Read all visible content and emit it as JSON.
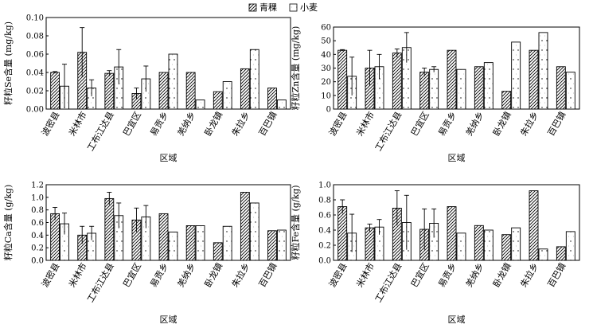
{
  "legend": {
    "items": [
      {
        "label": "青稞",
        "pattern": "hatch"
      },
      {
        "label": "小麦",
        "pattern": "dots"
      }
    ]
  },
  "chart_data": [
    {
      "type": "bar",
      "xlabel": "区域",
      "ylabel": "籽粒Se含量 (mg/kg)",
      "ylim": [
        0,
        0.1
      ],
      "yticks": [
        "0.00",
        "0.02",
        "0.04",
        "0.06",
        "0.08",
        "0.10"
      ],
      "categories": [
        "波密县",
        "米林市",
        "工布江达县",
        "巴宜区",
        "易贡乡",
        "羌纳乡",
        "卧龙镇",
        "朱拉乡",
        "百巴镇"
      ],
      "series": [
        {
          "name": "青稞",
          "values": [
            0.04,
            0.062,
            0.039,
            0.017,
            0.04,
            0.04,
            0.019,
            0.044,
            0.023
          ],
          "errors": [
            0.001,
            0.027,
            0.003,
            0.006,
            null,
            null,
            null,
            null,
            null
          ]
        },
        {
          "name": "小麦",
          "values": [
            0.025,
            0.023,
            0.046,
            0.033,
            0.06,
            0.01,
            0.03,
            0.065,
            0.01
          ],
          "errors": [
            0.024,
            0.009,
            0.019,
            0.014,
            null,
            null,
            null,
            null,
            null
          ]
        }
      ]
    },
    {
      "type": "bar",
      "xlabel": "区域",
      "ylabel": "籽粒Zn含量 (mg/kg)",
      "ylim": [
        0,
        60
      ],
      "yticks": [
        "0",
        "10",
        "20",
        "30",
        "40",
        "50",
        "60"
      ],
      "categories": [
        "波密县",
        "米林市",
        "工布江达县",
        "巴宜区",
        "易贡乡",
        "羌纳乡",
        "卧龙镇",
        "朱拉乡",
        "百巴镇"
      ],
      "series": [
        {
          "name": "青稞",
          "values": [
            43,
            30,
            41,
            27,
            43,
            31,
            13,
            43,
            31
          ],
          "errors": [
            0.5,
            13,
            3,
            3,
            null,
            null,
            null,
            null,
            null
          ]
        },
        {
          "name": "小麦",
          "values": [
            24,
            31,
            45,
            29,
            29,
            34,
            49,
            56,
            27
          ],
          "errors": [
            14,
            9,
            11,
            2,
            null,
            null,
            null,
            null,
            null
          ]
        }
      ]
    },
    {
      "type": "bar",
      "xlabel": "区域",
      "ylabel": "籽粒Ca含量 (g/kg)",
      "ylim": [
        0,
        1.2
      ],
      "yticks": [
        "0.0",
        "0.2",
        "0.4",
        "0.6",
        "0.8",
        "1.0",
        "1.2"
      ],
      "categories": [
        "波密县",
        "米林市",
        "工布江达县",
        "巴宜区",
        "易贡乡",
        "羌纳乡",
        "卧龙镇",
        "朱拉乡",
        "百巴镇"
      ],
      "series": [
        {
          "name": "青稞",
          "values": [
            0.74,
            0.4,
            0.98,
            0.64,
            0.74,
            0.55,
            0.28,
            1.08,
            0.47
          ],
          "errors": [
            0.1,
            0.14,
            0.1,
            0.19,
            null,
            null,
            null,
            null,
            null
          ]
        },
        {
          "name": "小麦",
          "values": [
            0.58,
            0.43,
            0.71,
            0.69,
            0.45,
            0.55,
            0.54,
            0.91,
            0.48
          ],
          "errors": [
            0.17,
            0.11,
            0.2,
            0.18,
            null,
            null,
            null,
            null,
            null
          ]
        }
      ]
    },
    {
      "type": "bar",
      "xlabel": "区域",
      "ylabel": "籽粒Fe含量 (g/kg)",
      "ylim": [
        0,
        1.0
      ],
      "yticks": [
        "0.0",
        "0.2",
        "0.4",
        "0.6",
        "0.8",
        "1.0"
      ],
      "categories": [
        "波密县",
        "米林市",
        "工布江达县",
        "巴宜区",
        "易贡乡",
        "羌纳乡",
        "卧龙镇",
        "朱拉乡",
        "百巴镇"
      ],
      "series": [
        {
          "name": "青稞",
          "values": [
            0.71,
            0.43,
            0.69,
            0.41,
            0.71,
            0.46,
            0.34,
            0.92,
            0.18
          ],
          "errors": [
            0.09,
            0.05,
            0.23,
            0.27,
            null,
            null,
            null,
            null,
            null
          ]
        },
        {
          "name": "小麦",
          "values": [
            0.36,
            0.44,
            0.5,
            0.49,
            0.36,
            0.4,
            0.43,
            0.15,
            0.38
          ],
          "errors": [
            0.25,
            0.1,
            0.36,
            0.19,
            null,
            null,
            null,
            null,
            null
          ]
        }
      ]
    }
  ]
}
